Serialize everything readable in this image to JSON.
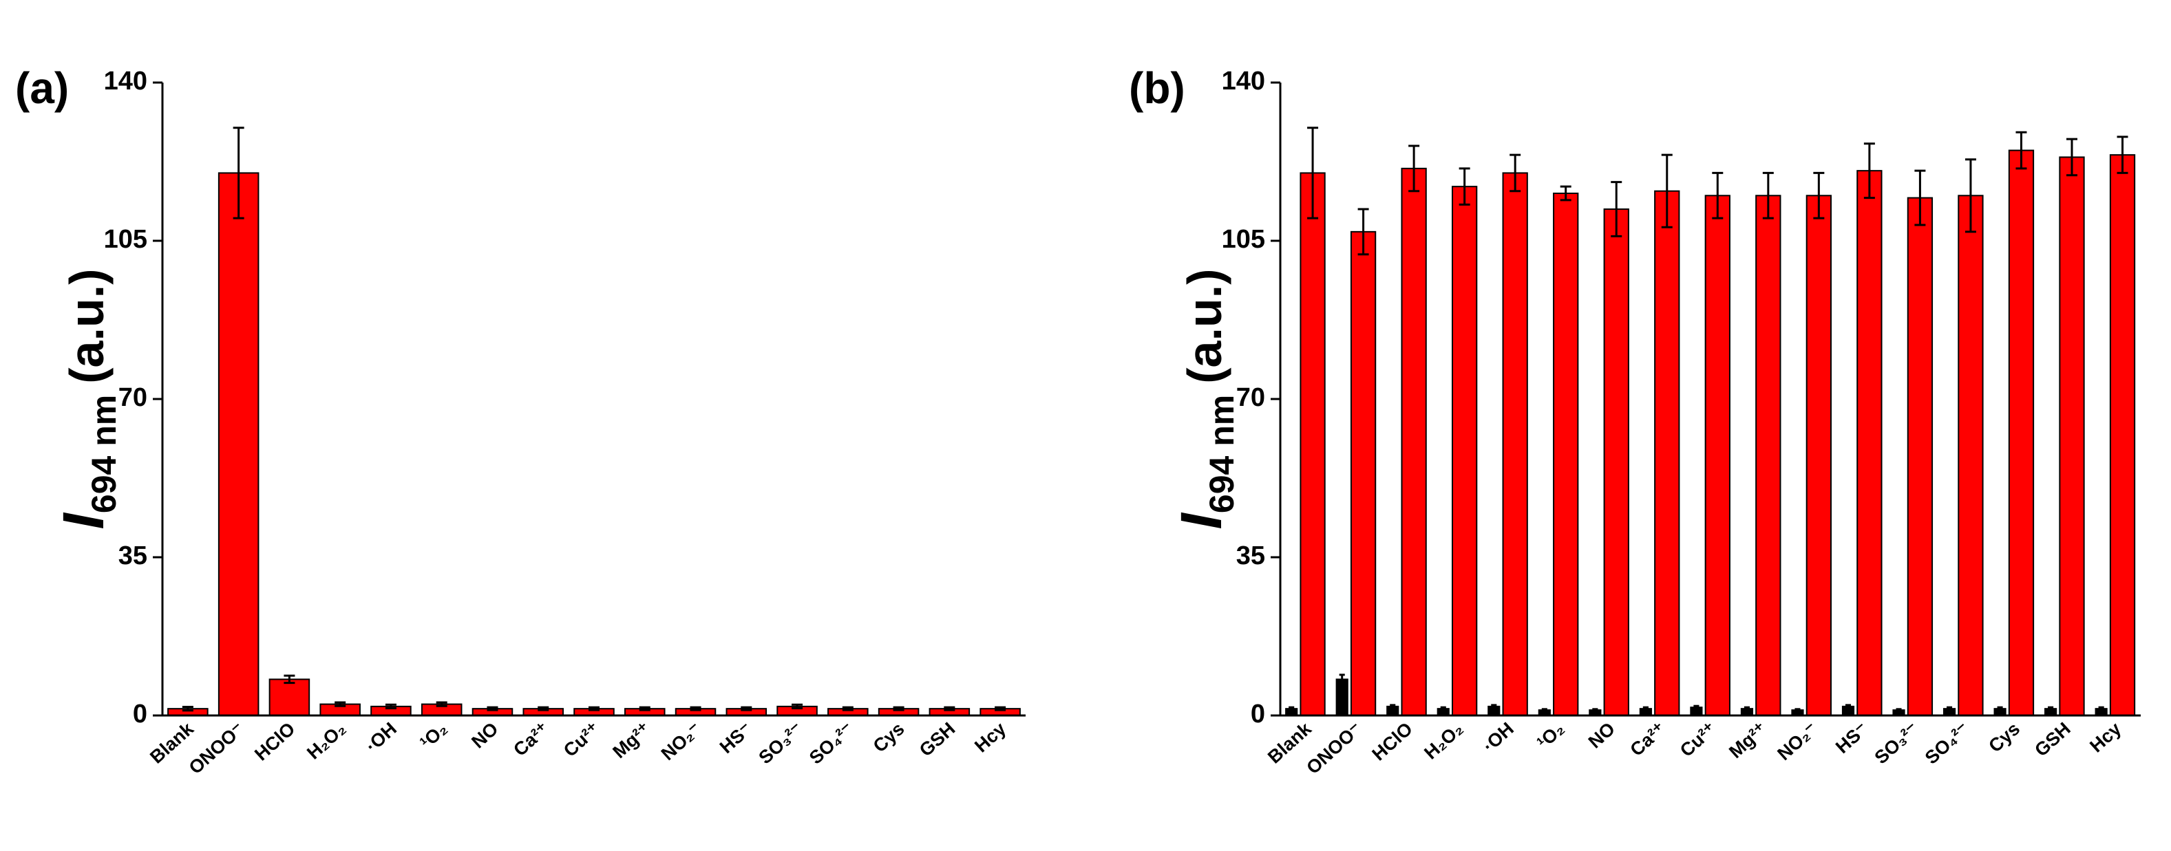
{
  "chart_data": [
    {
      "type": "bar",
      "panel_label": "(a)",
      "ylabel_symbol": "I",
      "ylabel_sub": "694 nm",
      "ylabel_unit": "(a.u.)",
      "categories": [
        "Blank",
        "ONOO⁻",
        "HClO",
        "H₂O₂",
        "·OH",
        "¹O₂",
        "NO",
        "Ca²⁺",
        "Cu²⁺",
        "Mg²⁺",
        "NO₂⁻",
        "HS⁻",
        "SO₃²⁻",
        "SO₄²⁻",
        "Cys",
        "GSH",
        "Hcy"
      ],
      "series": [
        {
          "color": "#ff0000",
          "values": [
            1.5,
            120,
            8,
            2.5,
            2,
            2.5,
            1.5,
            1.5,
            1.5,
            1.5,
            1.5,
            1.5,
            2,
            1.5,
            1.5,
            1.5,
            1.5
          ],
          "errors": [
            0.4,
            10,
            0.8,
            0.4,
            0.4,
            0.4,
            0.3,
            0.3,
            0.3,
            0.3,
            0.3,
            0.3,
            0.4,
            0.3,
            0.3,
            0.3,
            0.3
          ]
        }
      ],
      "ylim": [
        0,
        140
      ],
      "yticks": [
        0,
        35,
        70,
        105,
        140
      ]
    },
    {
      "type": "bar",
      "panel_label": "(b)",
      "ylabel_symbol": "I",
      "ylabel_sub": "694 nm",
      "ylabel_unit": "(a.u.)",
      "categories": [
        "Blank",
        "ONOO⁻",
        "HClO",
        "H₂O₂",
        "·OH",
        "¹O₂",
        "NO",
        "Ca²⁺",
        "Cu²⁺",
        "Mg²⁺",
        "NO₂⁻",
        "HS⁻",
        "SO₃²⁻",
        "SO₄²⁻",
        "Cys",
        "GSH",
        "Hcy"
      ],
      "series": [
        {
          "color": "#000000",
          "values": [
            1.5,
            8,
            2,
            1.5,
            2,
            1.2,
            1.2,
            1.5,
            1.8,
            1.5,
            1.2,
            2,
            1.2,
            1.5,
            1.5,
            1.5,
            1.5
          ],
          "errors": [
            0.3,
            1,
            0.3,
            0.3,
            0.3,
            0.2,
            0.2,
            0.3,
            0.3,
            0.3,
            0.2,
            0.3,
            0.2,
            0.3,
            0.3,
            0.3,
            0.3
          ]
        },
        {
          "color": "#ff0000",
          "values": [
            120,
            107,
            121,
            117,
            120,
            115.5,
            112,
            116,
            115,
            115,
            115,
            120.5,
            114.5,
            115,
            125,
            123.5,
            124
          ],
          "errors": [
            10,
            5,
            5,
            4,
            4,
            1.5,
            6,
            8,
            5,
            5,
            5,
            6,
            6,
            8,
            4,
            4,
            4
          ]
        }
      ],
      "ylim": [
        0,
        140
      ],
      "yticks": [
        0,
        35,
        70,
        105,
        140
      ]
    }
  ]
}
